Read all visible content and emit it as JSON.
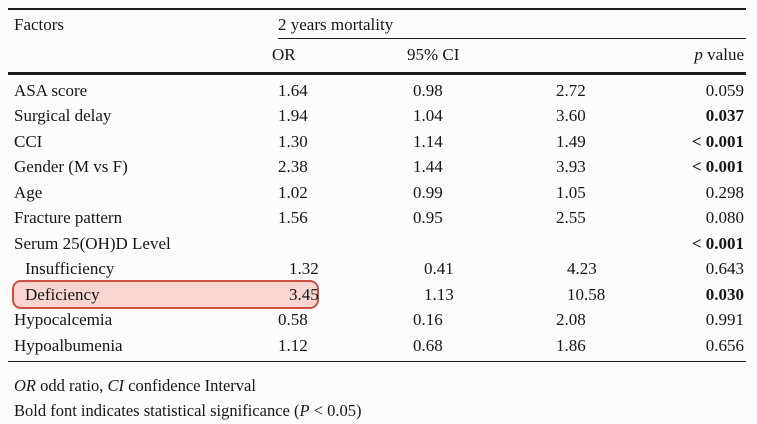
{
  "table": {
    "col_factors": "Factors",
    "group_header": "2 years mortality",
    "sub_headers": {
      "or": "OR",
      "ci": "95% CI",
      "p_italic": "p",
      "p_rest": " value"
    },
    "rows": [
      {
        "factor": "ASA score",
        "indent": false,
        "or": "1.64",
        "ci_low": "0.98",
        "ci_high": "2.72",
        "p": "0.059",
        "p_bold": false,
        "highlighted": false
      },
      {
        "factor": "Surgical delay",
        "indent": false,
        "or": "1.94",
        "ci_low": "1.04",
        "ci_high": "3.60",
        "p": "0.037",
        "p_bold": true,
        "highlighted": false
      },
      {
        "factor": "CCI",
        "indent": false,
        "or": "1.30",
        "ci_low": "1.14",
        "ci_high": "1.49",
        "p": "< 0.001",
        "p_bold": true,
        "highlighted": false
      },
      {
        "factor": "Gender (M vs F)",
        "indent": false,
        "or": "2.38",
        "ci_low": "1.44",
        "ci_high": "3.93",
        "p": "< 0.001",
        "p_bold": true,
        "highlighted": false
      },
      {
        "factor": "Age",
        "indent": false,
        "or": "1.02",
        "ci_low": "0.99",
        "ci_high": "1.05",
        "p": "0.298",
        "p_bold": false,
        "highlighted": false
      },
      {
        "factor": "Fracture pattern",
        "indent": false,
        "or": "1.56",
        "ci_low": "0.95",
        "ci_high": "2.55",
        "p": "0.080",
        "p_bold": false,
        "highlighted": false
      },
      {
        "factor": "Serum 25(OH)D Level",
        "indent": false,
        "or": "",
        "ci_low": "",
        "ci_high": "",
        "p": "< 0.001",
        "p_bold": true,
        "highlighted": false
      },
      {
        "factor": "Insufficiency",
        "indent": true,
        "or": "1.32",
        "ci_low": "0.41",
        "ci_high": "4.23",
        "p": "0.643",
        "p_bold": false,
        "highlighted": false
      },
      {
        "factor": "Deficiency",
        "indent": true,
        "or": "3.45",
        "ci_low": "1.13",
        "ci_high": "10.58",
        "p": "0.030",
        "p_bold": true,
        "highlighted": true
      },
      {
        "factor": "Hypocalcemia",
        "indent": false,
        "or": "0.58",
        "ci_low": "0.16",
        "ci_high": "2.08",
        "p": "0.991",
        "p_bold": false,
        "highlighted": false
      },
      {
        "factor": "Hypoalbumenia",
        "indent": false,
        "or": "1.12",
        "ci_low": "0.68",
        "ci_high": "1.86",
        "p": "0.656",
        "p_bold": false,
        "highlighted": false
      }
    ]
  },
  "footnotes": {
    "line1": {
      "or_italic": "OR",
      "mid": " odd ratio, ",
      "ci_italic": "CI",
      "end": " confidence Interval"
    },
    "line2": {
      "start": "Bold font indicates statistical significance (",
      "p_italic": "P",
      "end": " < 0.05)"
    }
  },
  "highlight": {
    "target_row": "Deficiency",
    "fill": "#f9d5d1",
    "border": "#cf4f44"
  },
  "colors": {
    "rule": "#1c1c1c",
    "text": "#161616",
    "background": "#fcfcfc"
  }
}
